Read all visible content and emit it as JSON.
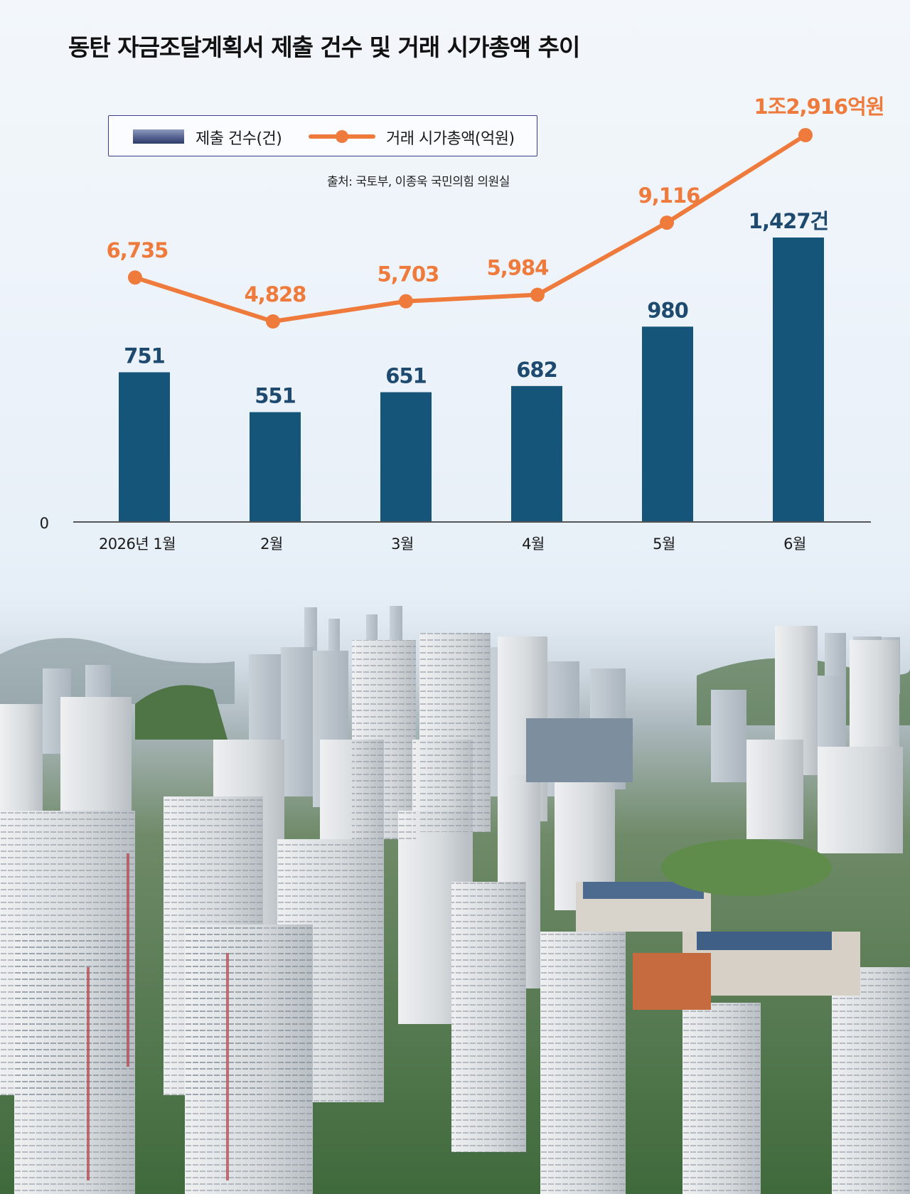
{
  "title": "동탄 자금조달계획서 제출 건수 및 거래 시가총액 추이",
  "source": "출처: 국토부, 이종욱 국민의힘 의원실",
  "colors": {
    "bar": "#145579",
    "line": "#ee7a3c",
    "bar_label": "#1d4a6e",
    "line_label": "#ee7a3c",
    "axis": "#555555"
  },
  "chart_data": {
    "type": "bar",
    "categories": [
      "2026년 1월",
      "2월",
      "3월",
      "4월",
      "5월",
      "6월"
    ],
    "y_zero_label": "0",
    "series": [
      {
        "name": "제출 건수(건)",
        "type": "bar",
        "values": [
          751,
          551,
          651,
          682,
          980,
          1427
        ],
        "labels": [
          "751",
          "551",
          "651",
          "682",
          "980",
          "1,427건"
        ]
      },
      {
        "name": "거래 시가총액(억원)",
        "type": "line",
        "values": [
          6735,
          4828,
          5703,
          5984,
          9116,
          12916
        ],
        "labels": [
          "6,735",
          "4,828",
          "5,703",
          "5,984",
          "9,116",
          "1조2,916억원"
        ]
      }
    ],
    "legend": "top-left",
    "grid": false
  },
  "photo": {
    "subject": "aerial-apartment-complex-photo"
  }
}
